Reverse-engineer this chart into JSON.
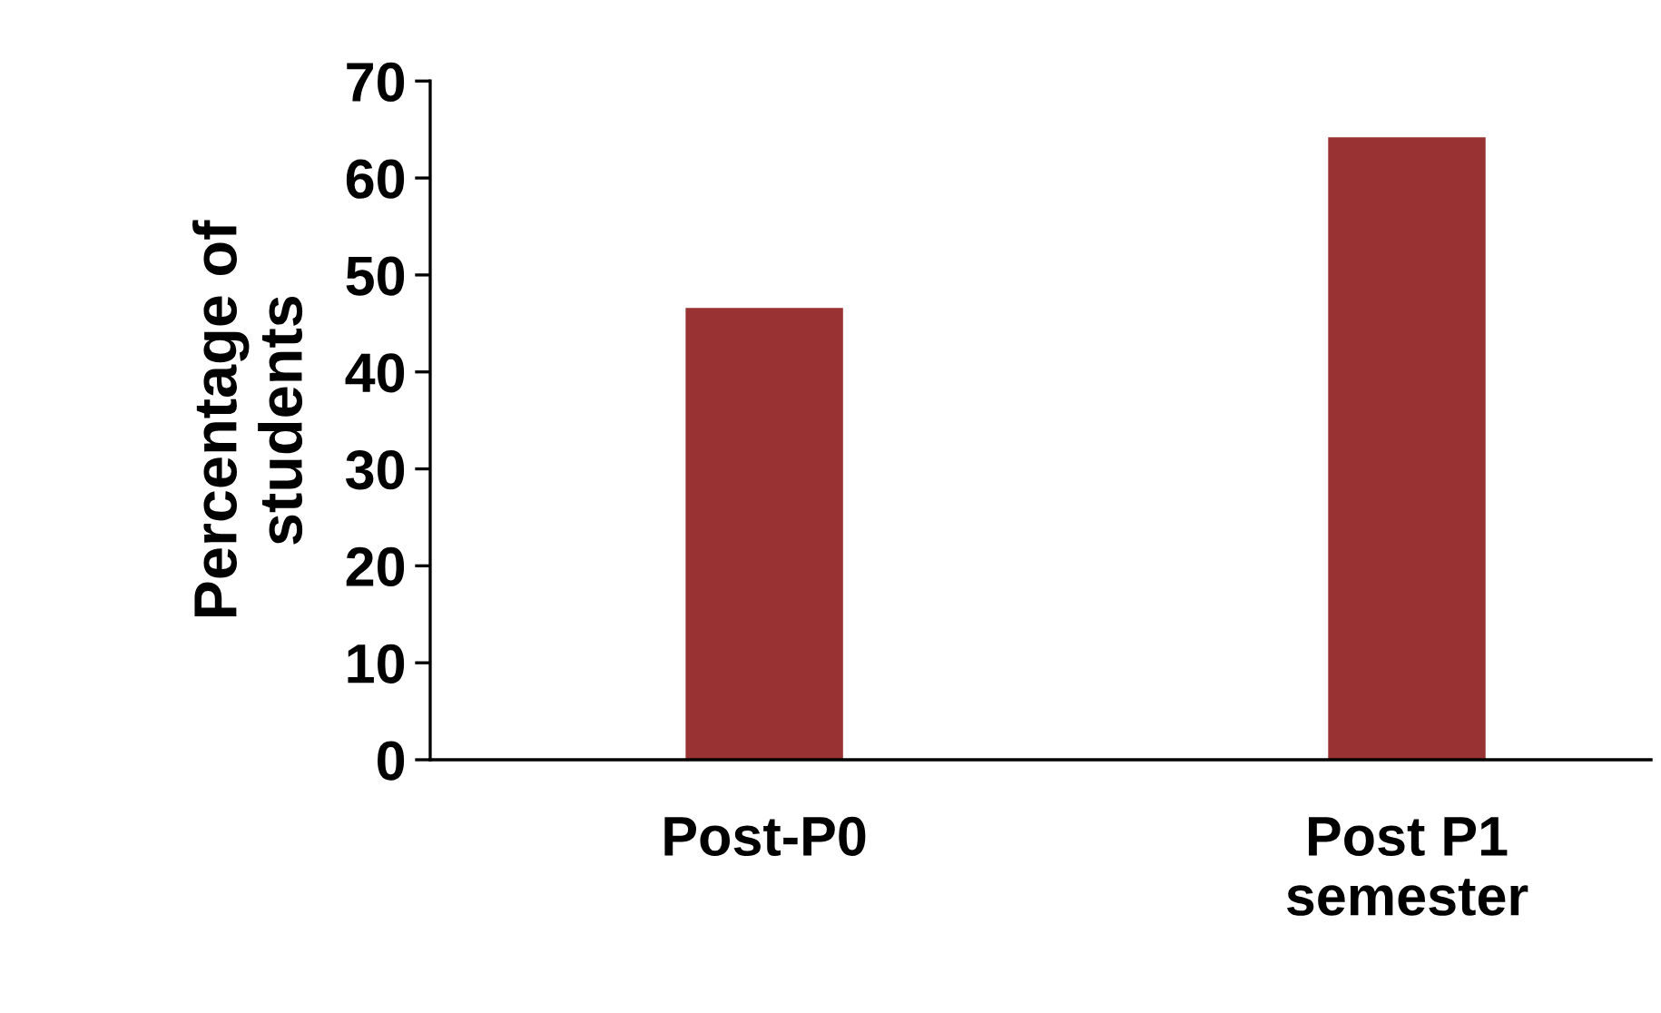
{
  "chart_data": {
    "type": "bar",
    "ylabel": "Percentage of\nstudents",
    "categories": [
      "Post-P0",
      "Post P1\nsemester"
    ],
    "values": [
      46.6,
      64.2
    ],
    "color": "#993333",
    "ylim": [
      0,
      70
    ],
    "yticks": [
      0,
      10,
      20,
      30,
      40,
      50,
      60,
      70
    ],
    "grid": false,
    "legend": false
  }
}
